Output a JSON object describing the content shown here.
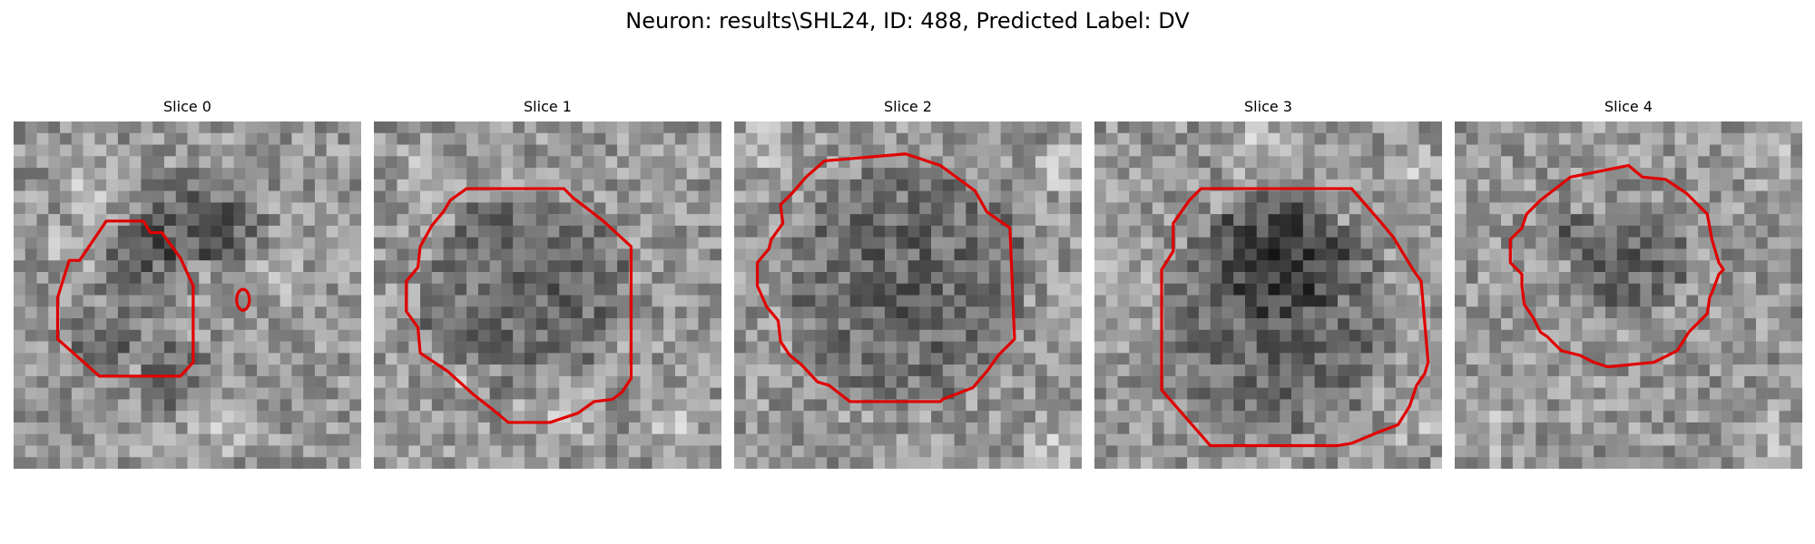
{
  "figure": {
    "suptitle": "Neuron: results\\SHL24, ID: 488, Predicted Label: DV"
  },
  "slices": [
    {
      "title": "Slice 0"
    },
    {
      "title": "Slice 1"
    },
    {
      "title": "Slice 2"
    },
    {
      "title": "Slice 3"
    },
    {
      "title": "Slice 4"
    }
  ],
  "colors": {
    "contour": "#e00000",
    "background": "#ffffff"
  }
}
